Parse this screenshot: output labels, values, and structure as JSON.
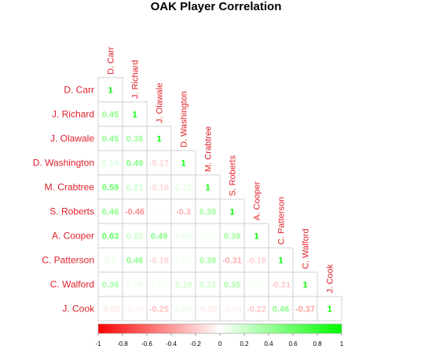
{
  "chart_data": {
    "type": "heatmap",
    "title": "OAK Player Correlation",
    "shape": "lower-triangle",
    "players": [
      "D. Carr",
      "J. Richard",
      "J. Olawale",
      "D. Washington",
      "M. Crabtree",
      "S. Roberts",
      "A. Cooper",
      "C. Patterson",
      "C. Walford",
      "J. Cook"
    ],
    "matrix": [
      [
        1
      ],
      [
        0.45,
        1
      ],
      [
        0.45,
        0.38,
        1
      ],
      [
        0.14,
        0.49,
        -0.17,
        1
      ],
      [
        0.59,
        0.21,
        -0.16,
        0.12,
        1
      ],
      [
        0.46,
        -0.46,
        0.02,
        -0.3,
        0.38,
        1
      ],
      [
        0.63,
        0.22,
        0.49,
        0.09,
        0.05,
        0.39,
        1
      ],
      [
        0.1,
        0.46,
        -0.18,
        0.07,
        0.38,
        -0.31,
        -0.18,
        1
      ],
      [
        0.36,
        0.08,
        0.06,
        0.19,
        0.21,
        0.35,
        0.05,
        -0.21,
        1
      ],
      [
        -0.09,
        -0.05,
        -0.25,
        0.08,
        -0.09,
        -0.06,
        -0.22,
        0.46,
        -0.37,
        1
      ]
    ],
    "colorbar": {
      "range": [
        -1,
        1
      ],
      "ticks": [
        "-1",
        "-0.8",
        "-0.6",
        "-0.4",
        "-0.2",
        "0",
        "0.2",
        "0.4",
        "0.6",
        "0.8",
        "1"
      ],
      "low_color": "#ff0000",
      "mid_color": "#ffffff",
      "high_color": "#00ff00"
    },
    "label_color": "#e0202a",
    "grid_color": "#c8c8c8"
  }
}
